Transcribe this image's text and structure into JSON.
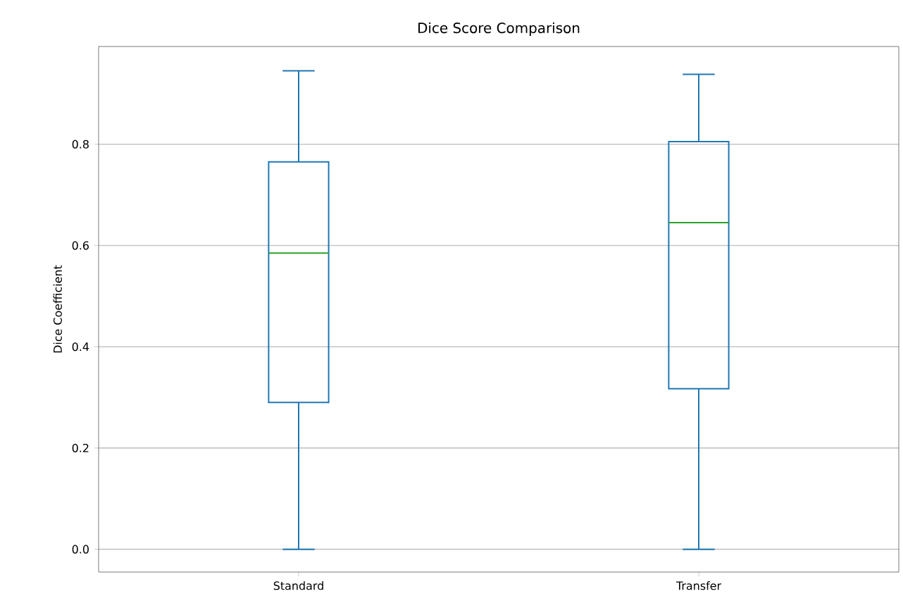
{
  "chart_data": {
    "type": "box",
    "title": "Dice Score Comparison",
    "ylabel": "Dice Coefficient",
    "categories": [
      "Standard",
      "Transfer"
    ],
    "boxes": [
      {
        "low": 0,
        "q1": 0.29,
        "median": 0.585,
        "q3": 0.765,
        "high": 0.945
      },
      {
        "low": 0,
        "q1": 0.317,
        "median": 0.645,
        "q3": 0.805,
        "high": 0.938
      }
    ],
    "color": "#1f77b4",
    "ylim": [
      -0.045,
      0.993
    ],
    "yticks": [
      {
        "value": 0,
        "label": "0.0"
      },
      0.2,
      0.4,
      0.6,
      0.8
    ],
    "grid": "y"
  }
}
